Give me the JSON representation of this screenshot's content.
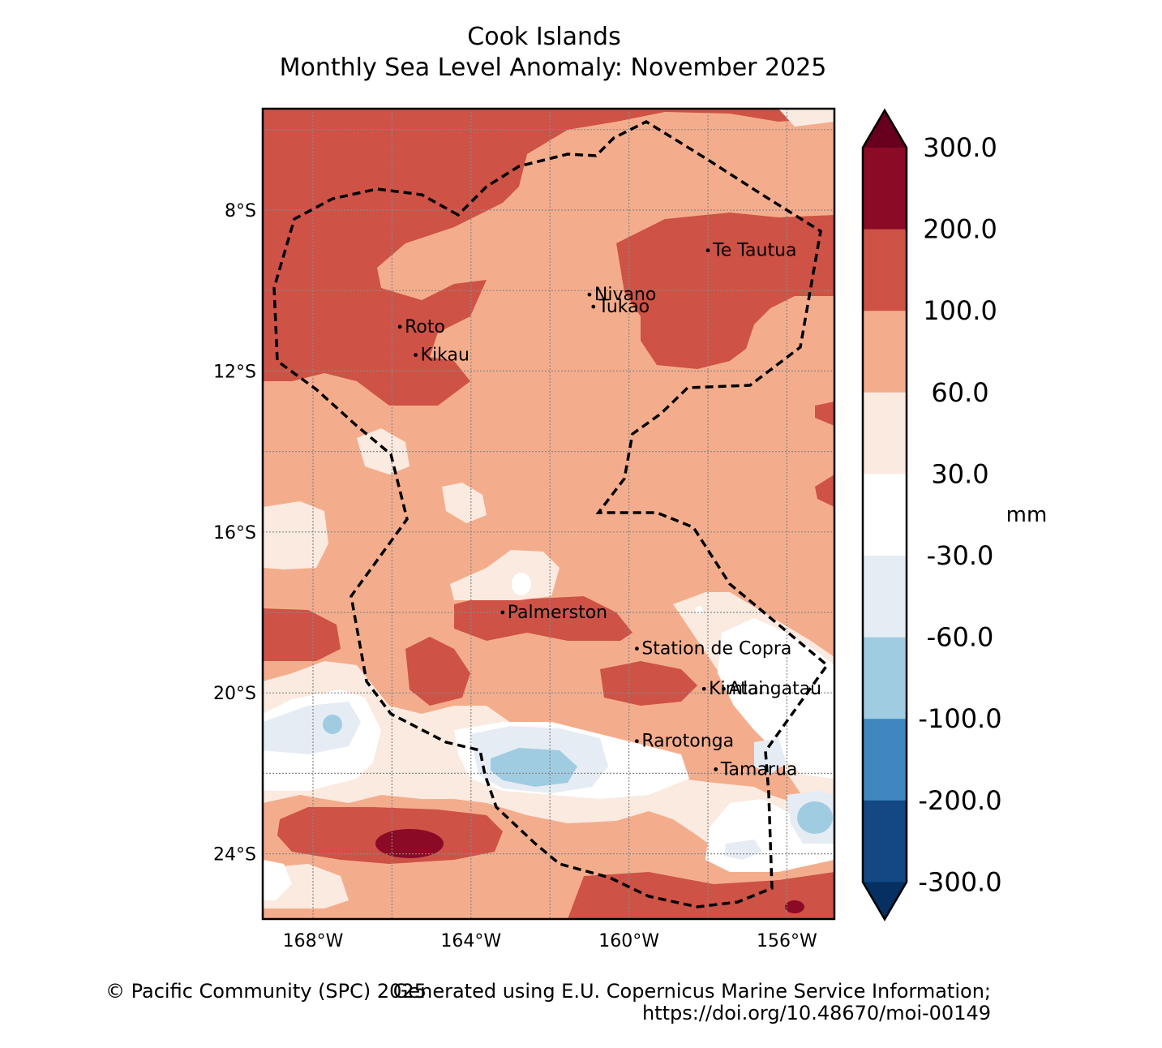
{
  "title": {
    "line1": "Cook Islands",
    "line2": "Monthly Sea Level Anomaly: November 2025"
  },
  "axes": {
    "lat_ticks": [
      "8°S",
      "12°S",
      "16°S",
      "20°S",
      "24°S"
    ],
    "lon_ticks": [
      "168°W",
      "164°W",
      "160°W",
      "156°W"
    ],
    "lat_values": [
      -8,
      -12,
      -16,
      -20,
      -24
    ],
    "lon_values": [
      -168,
      -164,
      -160,
      -156
    ]
  },
  "colorbar": {
    "unit": "mm",
    "levels": [
      "300.0",
      "200.0",
      "100.0",
      "60.0",
      "30.0",
      "-30.0",
      "-60.0",
      "-100.0",
      "-200.0",
      "-300.0"
    ],
    "colors": [
      "#8b0a26",
      "#ce5246",
      "#f4ad8c",
      "#faeae0",
      "#ffffff",
      "#e5ecf4",
      "#a0cce2",
      "#3f88bf",
      "#134885"
    ],
    "over_color": "#67001f",
    "under_color": "#053061"
  },
  "places": [
    {
      "name": "Te Tautua",
      "lon": -158.0,
      "lat": -9.0
    },
    {
      "name": "Nivano",
      "lon": -161.0,
      "lat": -10.1
    },
    {
      "name": "Tukao",
      "lon": -160.9,
      "lat": -10.4
    },
    {
      "name": "Roto",
      "lon": -165.8,
      "lat": -10.9
    },
    {
      "name": "Kikau",
      "lon": -165.4,
      "lat": -11.6
    },
    {
      "name": "Palmerston",
      "lon": -163.2,
      "lat": -18.0
    },
    {
      "name": "Station de Copra",
      "lon": -159.8,
      "lat": -18.9
    },
    {
      "name": "Atai",
      "lon": -157.6,
      "lat": -19.9
    },
    {
      "name": "Kimlangatau",
      "lon": -158.1,
      "lat": -19.9
    },
    {
      "name": "Rarotonga",
      "lon": -159.8,
      "lat": -21.2
    },
    {
      "name": "Tamarua",
      "lon": -157.8,
      "lat": -21.9
    }
  ],
  "footer": {
    "copyright": "© Pacific Community (SPC) 2025",
    "source_line1": "Generated using E.U. Copernicus Marine Service Information;",
    "source_line2": "https://doi.org/10.48670/moi-00149"
  }
}
